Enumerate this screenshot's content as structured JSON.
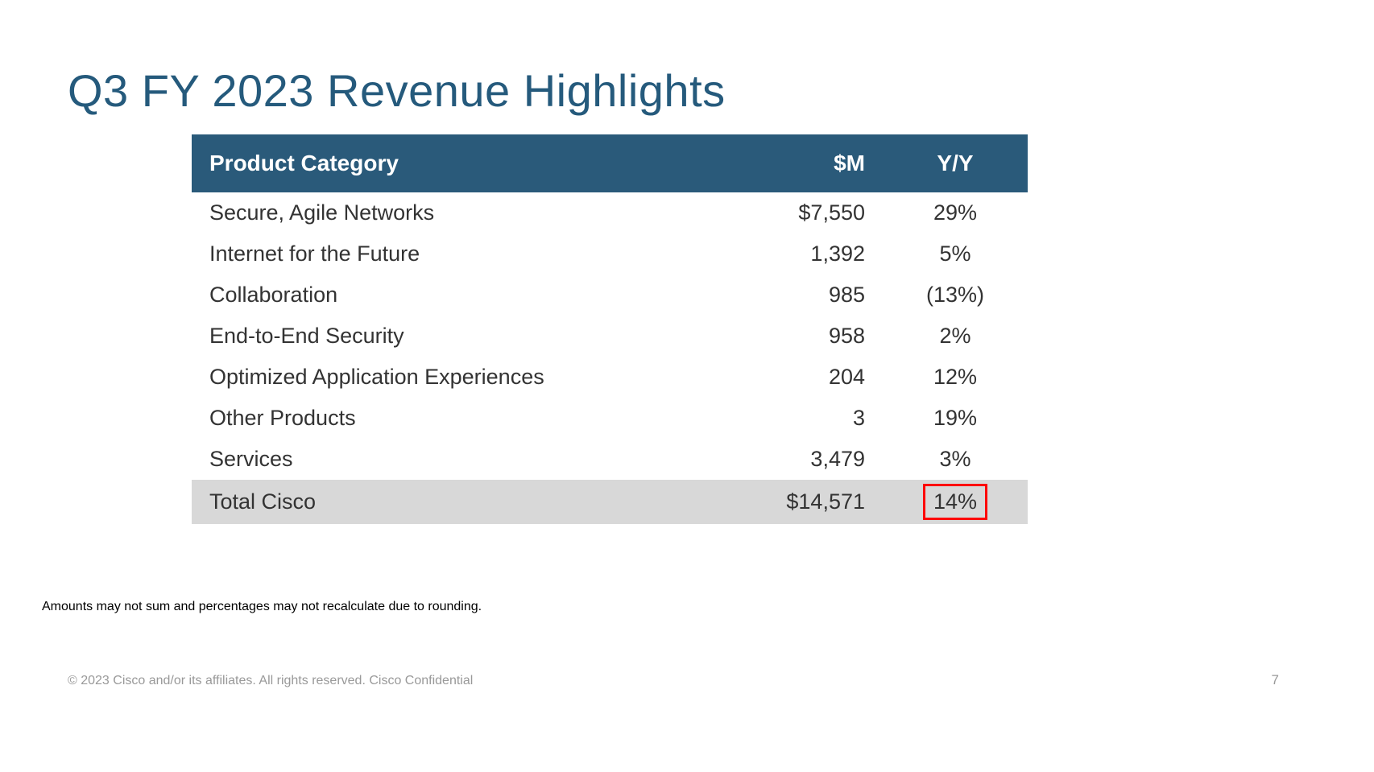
{
  "title": "Q3 FY 2023 Revenue Highlights",
  "table": {
    "type": "table",
    "header_bg": "#2a5a7a",
    "header_text_color": "#ffffff",
    "total_row_bg": "#d8d8d8",
    "highlight_border_color": "#ff0000",
    "text_color": "#333333",
    "columns": [
      {
        "key": "category",
        "label": "Product Category",
        "align": "left"
      },
      {
        "key": "amount",
        "label": "$M",
        "align": "right"
      },
      {
        "key": "yy",
        "label": "Y/Y",
        "align": "center"
      }
    ],
    "rows": [
      {
        "category": "Secure, Agile Networks",
        "amount": "$7,550",
        "yy": "29%"
      },
      {
        "category": "Internet for the Future",
        "amount": "1,392",
        "yy": "5%"
      },
      {
        "category": "Collaboration",
        "amount": "985",
        "yy": "(13%)"
      },
      {
        "category": "End-to-End Security",
        "amount": "958",
        "yy": "2%"
      },
      {
        "category": "Optimized Application Experiences",
        "amount": "204",
        "yy": "12%"
      },
      {
        "category": "Other Products",
        "amount": "3",
        "yy": "19%"
      },
      {
        "category": "Services",
        "amount": "3,479",
        "yy": "3%"
      }
    ],
    "total_row": {
      "category": "Total Cisco",
      "amount": "$14,571",
      "yy": "14%",
      "highlight_yy": true
    }
  },
  "footnote": "Amounts may not sum and percentages may not recalculate due to rounding.",
  "footer": {
    "copyright": "© 2023  Cisco and/or its affiliates. All rights reserved.   Cisco Confidential",
    "page_number": "7"
  },
  "styling": {
    "title_color": "#255a7c",
    "title_fontsize": 56,
    "body_fontsize": 27,
    "header_fontsize": 28,
    "footnote_fontsize": 16,
    "footer_fontsize": 16,
    "background_color": "#ffffff"
  }
}
